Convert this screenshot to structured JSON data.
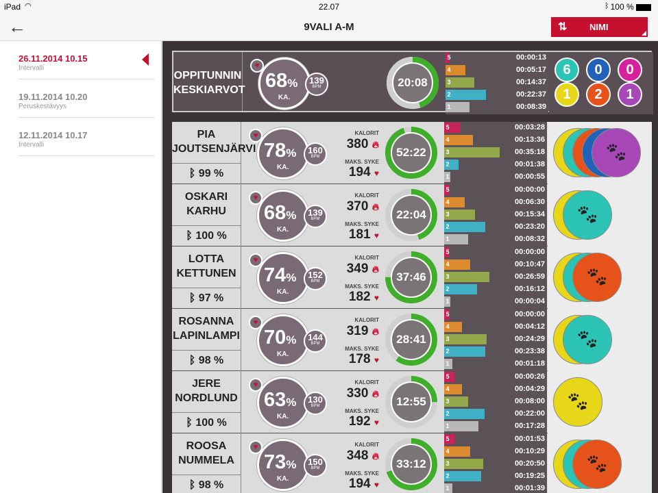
{
  "status": {
    "device": "iPad",
    "time": "22.07",
    "battery": "100 %"
  },
  "nav": {
    "title": "9VALI A-M",
    "sort_label": "NIMI"
  },
  "sessions": [
    {
      "date": "26.11.2014 10.15",
      "type": "Intervalli"
    },
    {
      "date": "19.11.2014 10.20",
      "type": "Peruskestävyys"
    },
    {
      "date": "12.11.2014 10.17",
      "type": "Intervalli"
    }
  ],
  "labels": {
    "ka": "KA.",
    "bpm": "BPM",
    "kalorit": "KALORIT",
    "maks_syke": "MAKS. SYKE"
  },
  "average": {
    "name_line1": "OPPITUNNIN",
    "name_line2": "KESKIARVOT",
    "pct": "68",
    "bpm": "139",
    "timer": "20:08",
    "timer_fraction": 0.45,
    "zones": [
      {
        "n": "5",
        "time": "00:00:13",
        "fraction": 0.03
      },
      {
        "n": "4",
        "time": "00:05:17",
        "fraction": 0.19
      },
      {
        "n": "3",
        "time": "00:14:37",
        "fraction": 0.28
      },
      {
        "n": "2",
        "time": "00:22:37",
        "fraction": 0.39
      },
      {
        "n": "1",
        "time": "00:08:39",
        "fraction": 0.23
      }
    ],
    "team_counts": [
      {
        "value": "6",
        "color": "#2bc4b5"
      },
      {
        "value": "0",
        "color": "#1f62b8"
      },
      {
        "value": "0",
        "color": "#d6229a"
      },
      {
        "value": "1",
        "color": "#e8d719"
      },
      {
        "value": "2",
        "color": "#e5521a"
      },
      {
        "value": "1",
        "color": "#a847b8"
      }
    ]
  },
  "students": [
    {
      "first": "PIA",
      "last": "JOUTSENJÄRVI",
      "battery": "99 %",
      "pct": "78",
      "bpm": "160",
      "kalorit": "380",
      "maks_syke": "194",
      "timer": "52:22",
      "timer_fraction": 0.95,
      "zones": [
        {
          "n": "5",
          "time": "00:03:28",
          "fraction": 0.16
        },
        {
          "n": "4",
          "time": "00:13:36",
          "fraction": 0.28
        },
        {
          "n": "3",
          "time": "00:35:18",
          "fraction": 0.54
        },
        {
          "n": "2",
          "time": "00:01:38",
          "fraction": 0.14
        },
        {
          "n": "1",
          "time": "00:00:55",
          "fraction": 0.06
        }
      ],
      "discs": [
        "#e8d719",
        "#2bc4b5",
        "#e5521a",
        "#1f62b8",
        "#a847b8"
      ]
    },
    {
      "first": "OSKARI",
      "last": "KARHU",
      "battery": "100 %",
      "pct": "68",
      "bpm": "139",
      "kalorit": "370",
      "maks_syke": "181",
      "timer": "22:04",
      "timer_fraction": 0.45,
      "zones": [
        {
          "n": "5",
          "time": "00:00:00",
          "fraction": 0.05
        },
        {
          "n": "4",
          "time": "00:06:30",
          "fraction": 0.2
        },
        {
          "n": "3",
          "time": "00:15:34",
          "fraction": 0.3
        },
        {
          "n": "2",
          "time": "00:23:20",
          "fraction": 0.4
        },
        {
          "n": "1",
          "time": "00:08:32",
          "fraction": 0.23
        }
      ],
      "discs": [
        "#e8d719",
        "#2bc4b5"
      ]
    },
    {
      "first": "LOTTA",
      "last": "KETTUNEN",
      "battery": "97 %",
      "pct": "74",
      "bpm": "152",
      "kalorit": "349",
      "maks_syke": "182",
      "timer": "37:46",
      "timer_fraction": 0.75,
      "zones": [
        {
          "n": "5",
          "time": "00:00:00",
          "fraction": 0.05
        },
        {
          "n": "4",
          "time": "00:10:47",
          "fraction": 0.25
        },
        {
          "n": "3",
          "time": "00:26:59",
          "fraction": 0.44
        },
        {
          "n": "2",
          "time": "00:16:12",
          "fraction": 0.32
        },
        {
          "n": "1",
          "time": "00:00:04",
          "fraction": 0.06
        }
      ],
      "discs": [
        "#e8d719",
        "#2bc4b5",
        "#e5521a"
      ]
    },
    {
      "first": "ROSANNA",
      "last": "LAPINLAMPI",
      "battery": "98 %",
      "pct": "70",
      "bpm": "144",
      "kalorit": "319",
      "maks_syke": "178",
      "timer": "28:41",
      "timer_fraction": 0.6,
      "zones": [
        {
          "n": "5",
          "time": "00:00:00",
          "fraction": 0.05
        },
        {
          "n": "4",
          "time": "00:04:12",
          "fraction": 0.17
        },
        {
          "n": "3",
          "time": "00:24:29",
          "fraction": 0.41
        },
        {
          "n": "2",
          "time": "00:23:38",
          "fraction": 0.4
        },
        {
          "n": "1",
          "time": "00:01:18",
          "fraction": 0.08
        }
      ],
      "discs": [
        "#e8d719",
        "#2bc4b5"
      ]
    },
    {
      "first": "JERE",
      "last": "NORDLUND",
      "battery": "100 %",
      "pct": "63",
      "bpm": "130",
      "kalorit": "330",
      "maks_syke": "192",
      "timer": "12:55",
      "timer_fraction": 0.25,
      "zones": [
        {
          "n": "5",
          "time": "00:00:26",
          "fraction": 0.1
        },
        {
          "n": "4",
          "time": "00:04:29",
          "fraction": 0.17
        },
        {
          "n": "3",
          "time": "00:08:00",
          "fraction": 0.23
        },
        {
          "n": "2",
          "time": "00:22:00",
          "fraction": 0.39
        },
        {
          "n": "1",
          "time": "00:17:28",
          "fraction": 0.33
        }
      ],
      "discs": [
        "#e8d719"
      ]
    },
    {
      "first": "ROOSA",
      "last": "NUMMELA",
      "battery": "98 %",
      "pct": "73",
      "bpm": "150",
      "kalorit": "348",
      "maks_syke": "194",
      "timer": "33:12",
      "timer_fraction": 0.7,
      "zones": [
        {
          "n": "5",
          "time": "00:01:53",
          "fraction": 0.1
        },
        {
          "n": "4",
          "time": "00:10:29",
          "fraction": 0.25
        },
        {
          "n": "3",
          "time": "00:20:50",
          "fraction": 0.38
        },
        {
          "n": "2",
          "time": "00:19:25",
          "fraction": 0.36
        },
        {
          "n": "1",
          "time": "00:01:39",
          "fraction": 0.08
        }
      ],
      "discs": [
        "#e8d719",
        "#2bc4b5",
        "#e5521a"
      ]
    }
  ],
  "zone_colors": {
    "5": "#c5235a",
    "4": "#dd8a2e",
    "3": "#93a84a",
    "2": "#3fb0c6",
    "1": "#b8b8b8"
  }
}
